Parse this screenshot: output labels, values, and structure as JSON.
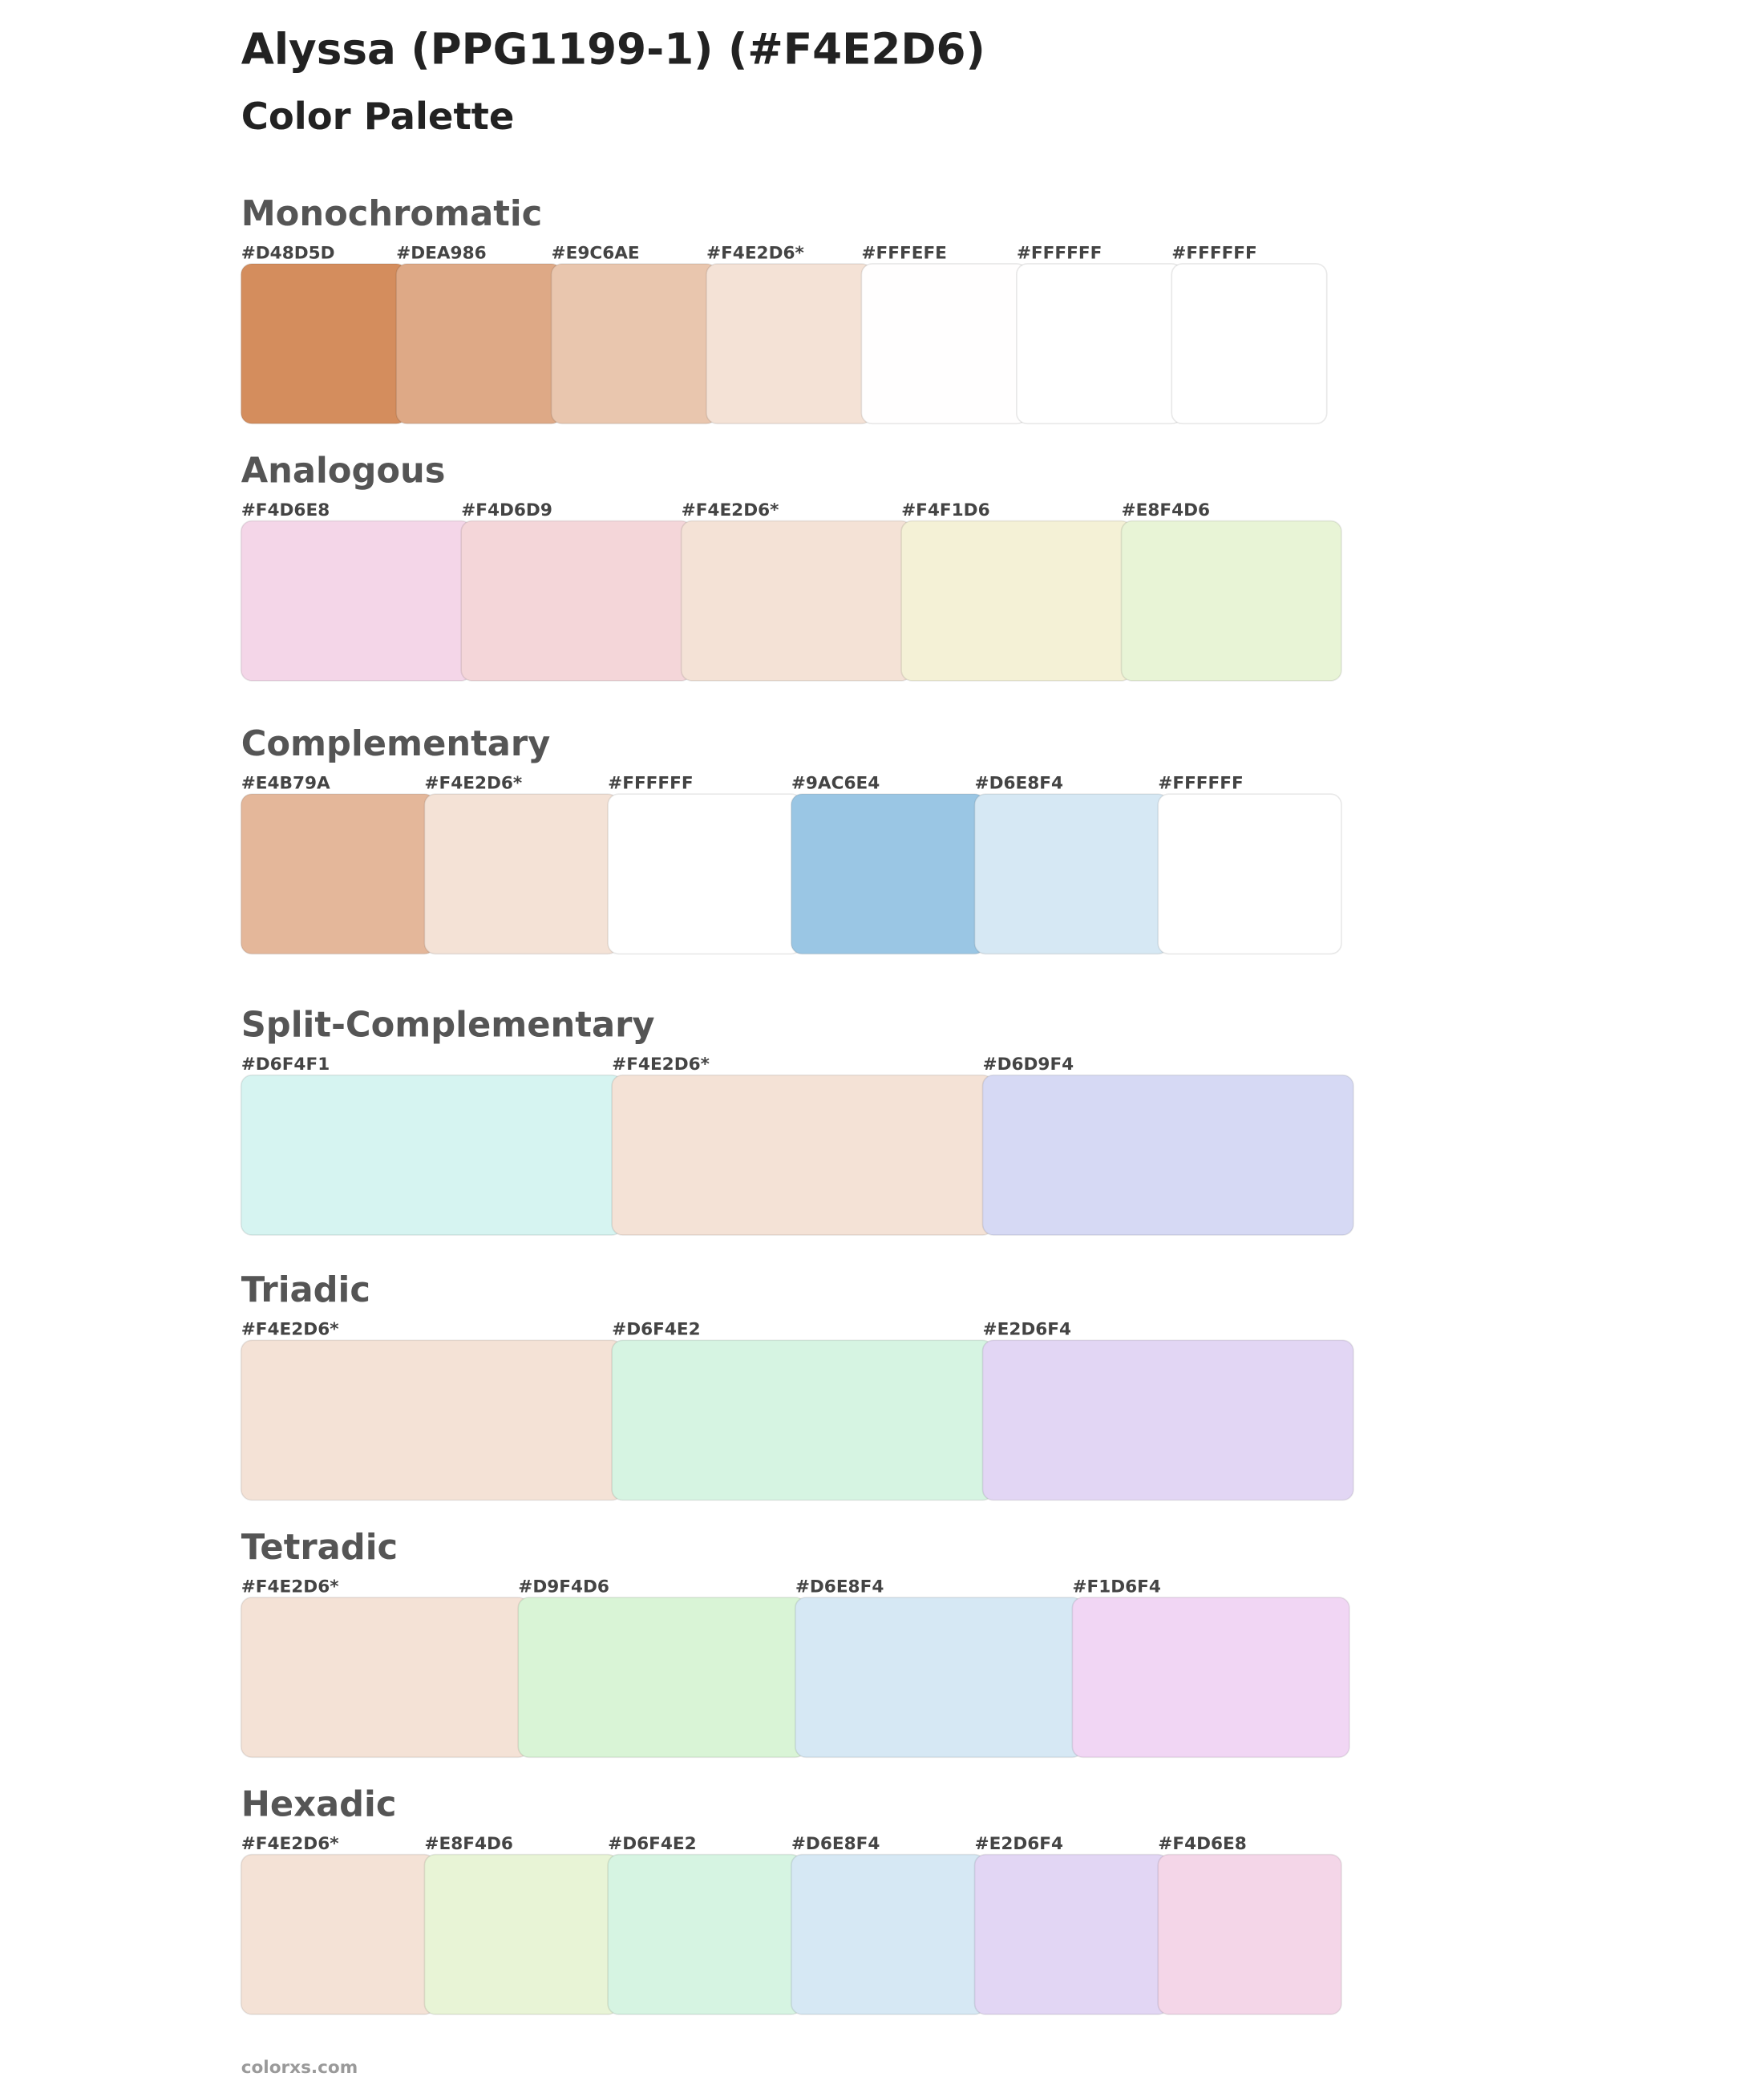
{
  "header": {
    "title": "Alyssa (PPG1199-1) (#F4E2D6)",
    "subtitle": "Color Palette"
  },
  "sections": [
    {
      "name": "Monochromatic",
      "swatches": [
        {
          "label": "#D48D5D",
          "color": "#D48D5D"
        },
        {
          "label": "#DEA986",
          "color": "#DEA986"
        },
        {
          "label": "#E9C6AE",
          "color": "#E9C6AE"
        },
        {
          "label": "#F4E2D6*",
          "color": "#F4E2D6"
        },
        {
          "label": "#FFFEFE",
          "color": "#FFFEFE"
        },
        {
          "label": "#FFFFFF",
          "color": "#FFFFFF"
        },
        {
          "label": "#FFFFFF",
          "color": "#FFFFFF"
        }
      ]
    },
    {
      "name": "Analogous",
      "swatches": [
        {
          "label": "#F4D6E8",
          "color": "#F4D6E8"
        },
        {
          "label": "#F4D6D9",
          "color": "#F4D6D9"
        },
        {
          "label": "#F4E2D6*",
          "color": "#F4E2D6"
        },
        {
          "label": "#F4F1D6",
          "color": "#F4F1D6"
        },
        {
          "label": "#E8F4D6",
          "color": "#E8F4D6"
        }
      ]
    },
    {
      "name": "Complementary",
      "swatches": [
        {
          "label": "#E4B79A",
          "color": "#E4B79A"
        },
        {
          "label": "#F4E2D6*",
          "color": "#F4E2D6"
        },
        {
          "label": "#FFFFFF",
          "color": "#FFFFFF"
        },
        {
          "label": "#9AC6E4",
          "color": "#9AC6E4"
        },
        {
          "label": "#D6E8F4",
          "color": "#D6E8F4"
        },
        {
          "label": "#FFFFFF",
          "color": "#FFFFFF"
        }
      ]
    },
    {
      "name": "Split-Complementary",
      "swatches": [
        {
          "label": "#D6F4F1",
          "color": "#D6F4F1"
        },
        {
          "label": "#F4E2D6*",
          "color": "#F4E2D6"
        },
        {
          "label": "#D6D9F4",
          "color": "#D6D9F4"
        }
      ]
    },
    {
      "name": "Triadic",
      "swatches": [
        {
          "label": "#F4E2D6*",
          "color": "#F4E2D6"
        },
        {
          "label": "#D6F4E2",
          "color": "#D6F4E2"
        },
        {
          "label": "#E2D6F4",
          "color": "#E2D6F4"
        }
      ]
    },
    {
      "name": "Tetradic",
      "swatches": [
        {
          "label": "#F4E2D6*",
          "color": "#F4E2D6"
        },
        {
          "label": "#D9F4D6",
          "color": "#D9F4D6"
        },
        {
          "label": "#D6E8F4",
          "color": "#D6E8F4"
        },
        {
          "label": "#F1D6F4",
          "color": "#F1D6F4"
        }
      ]
    },
    {
      "name": "Hexadic",
      "swatches": [
        {
          "label": "#F4E2D6*",
          "color": "#F4E2D6"
        },
        {
          "label": "#E8F4D6",
          "color": "#E8F4D6"
        },
        {
          "label": "#D6F4E2",
          "color": "#D6F4E2"
        },
        {
          "label": "#D6E8F4",
          "color": "#D6E8F4"
        },
        {
          "label": "#E2D6F4",
          "color": "#E2D6F4"
        },
        {
          "label": "#F4D6E8",
          "color": "#F4D6E8"
        }
      ]
    }
  ],
  "footer": "colorxs.com"
}
